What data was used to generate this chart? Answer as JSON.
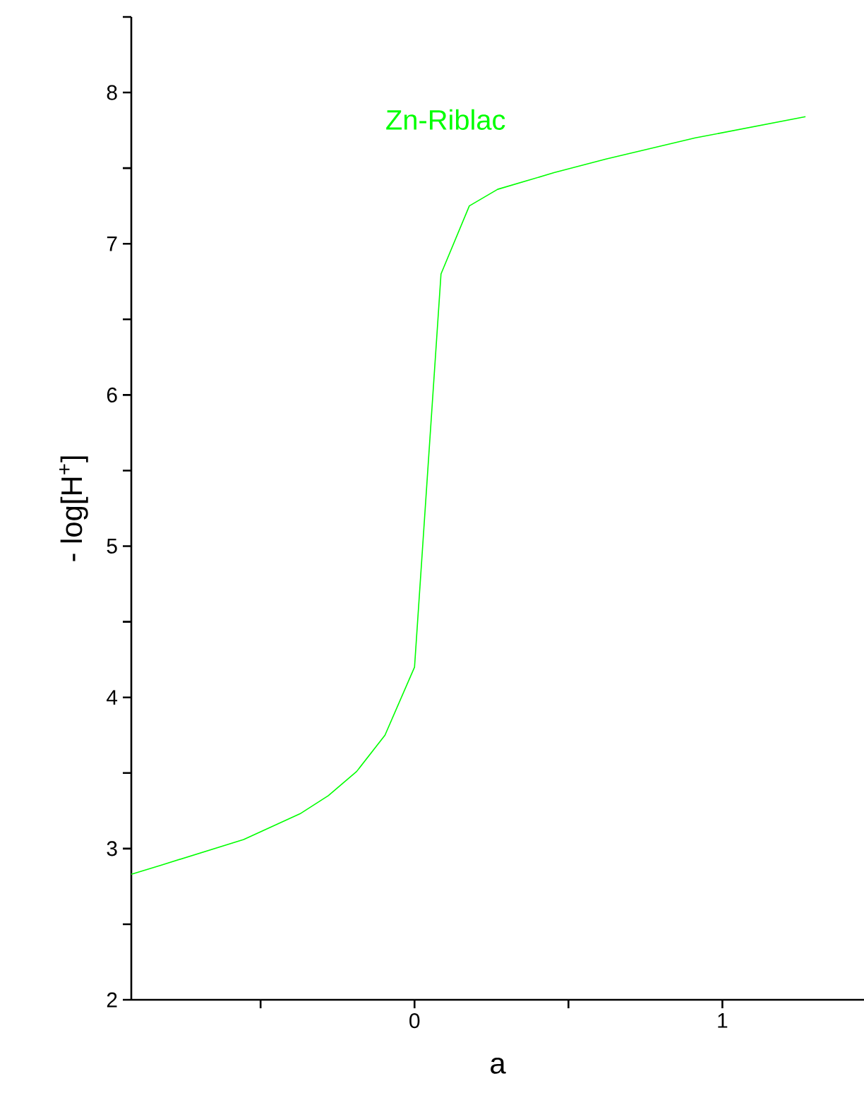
{
  "chart_data": {
    "type": "line",
    "xlabel": "a",
    "ylabel": "- log[H$^{+}$]",
    "xlim": [
      -0.92,
      1.46
    ],
    "ylim": [
      2,
      8.5
    ],
    "xticks": [
      {
        "value": -0.5,
        "label": null
      },
      0,
      {
        "value": 0.5,
        "label": null
      },
      1
    ],
    "yticks": [
      2,
      {
        "value": 2.5,
        "label": null
      },
      3,
      {
        "value": 3.5,
        "label": null
      },
      4,
      {
        "value": 4.5,
        "label": null
      },
      5,
      {
        "value": 5.5,
        "label": null
      },
      6,
      {
        "value": 6.5,
        "label": null
      },
      7,
      {
        "value": 7.5,
        "label": null
      },
      8,
      {
        "value": 8.5,
        "label": null
      }
    ],
    "grid": false,
    "legend": false,
    "marker": "none",
    "line_style": "solid",
    "series": [
      {
        "name": "Zn-Riblac",
        "color": "#00ff00",
        "x": [
          -0.92,
          -0.824,
          -0.555,
          -0.372,
          -0.28,
          -0.188,
          -0.096,
          0.0,
          0.086,
          0.178,
          0.27,
          0.453,
          0.622,
          0.912,
          1.27
        ],
        "values": [
          2.83,
          2.89,
          3.06,
          3.23,
          3.35,
          3.51,
          3.75,
          4.2,
          6.8,
          7.25,
          7.36,
          7.47,
          7.56,
          7.7,
          7.84
        ]
      }
    ]
  }
}
